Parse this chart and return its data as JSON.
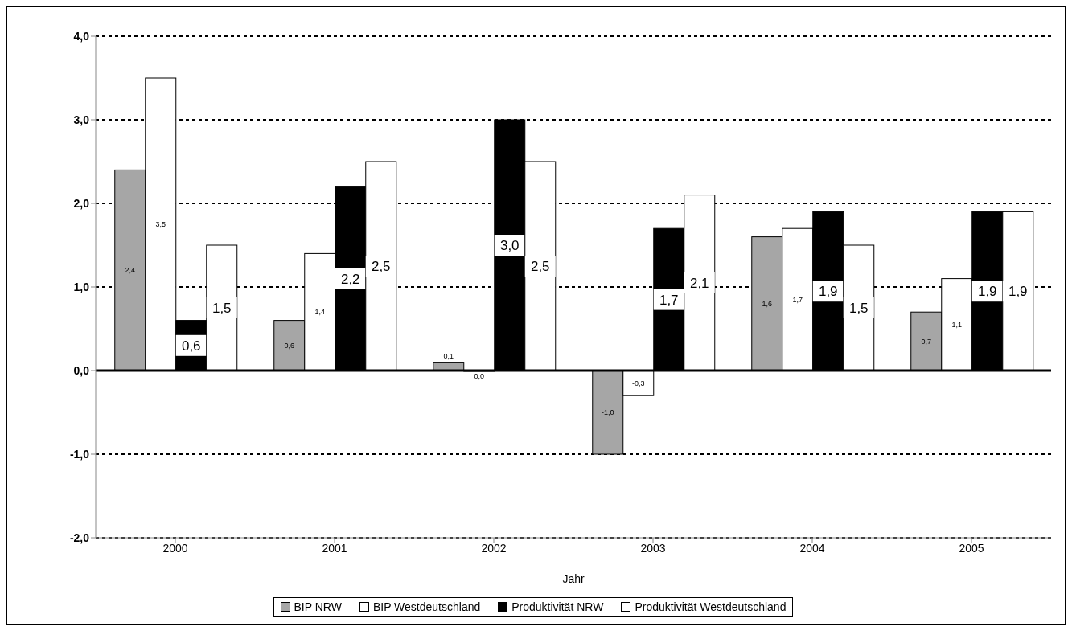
{
  "chart_data": {
    "type": "bar",
    "xlabel": "Jahr",
    "categories": [
      "2000",
      "2001",
      "2002",
      "2003",
      "2004",
      "2005"
    ],
    "series": [
      {
        "name": "BIP NRW",
        "color": "#a6a6a6",
        "values": [
          2.4,
          0.6,
          0.1,
          -1.0,
          1.6,
          0.7
        ],
        "value_labels": [
          "2,4",
          "0,6",
          "0,1",
          "-1,0",
          "1,6",
          "0,7"
        ]
      },
      {
        "name": "BIP Westdeutschland",
        "color": "#ffffff",
        "values": [
          3.5,
          1.4,
          0.0,
          -0.3,
          1.7,
          1.1
        ],
        "value_labels": [
          "3,5",
          "1,4",
          "0,0",
          "-0,3",
          "1,7",
          "1,1"
        ]
      },
      {
        "name": "Produktivität NRW",
        "color": "#000000",
        "values": [
          0.6,
          2.2,
          3.0,
          1.7,
          1.9,
          1.9
        ],
        "value_labels": [
          "0,6",
          "2,2",
          "3,0",
          "1,7",
          "1,9",
          "1,9"
        ]
      },
      {
        "name": "Produktivität Westdeutschland",
        "color": "#ffffff",
        "values": [
          1.5,
          2.5,
          2.5,
          2.1,
          1.5,
          1.9
        ],
        "value_labels": [
          "1,5",
          "2,5",
          "2,5",
          "2,1",
          "1,5",
          "1,9"
        ]
      }
    ],
    "ylim": [
      -2,
      4
    ],
    "yticks": [
      {
        "value": -2,
        "label": "-2,0"
      },
      {
        "value": -1,
        "label": "-1,0"
      },
      {
        "value": 0,
        "label": "0,0"
      },
      {
        "value": 1,
        "label": "1,0"
      },
      {
        "value": 2,
        "label": "2,0"
      },
      {
        "value": 3,
        "label": "3,0"
      },
      {
        "value": 4,
        "label": "4,0"
      }
    ],
    "grid": "y",
    "legend": "bottom"
  }
}
